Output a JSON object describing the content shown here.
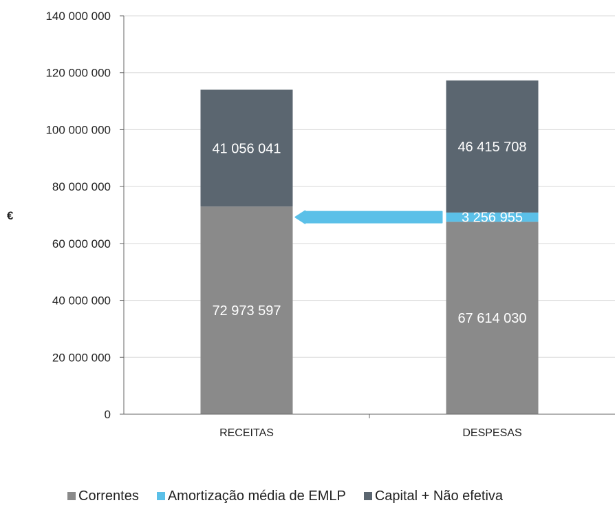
{
  "chart_data": {
    "type": "bar",
    "stacked": true,
    "categories": [
      "RECEITAS",
      "DESPESAS"
    ],
    "series": [
      {
        "name": "Correntes",
        "values": [
          72973597,
          67614030
        ],
        "value_labels": [
          "72 973 597",
          "67 614 030"
        ],
        "color": "#8a8a8a"
      },
      {
        "name": "Amortização média de EMLP",
        "values": [
          0,
          3256955
        ],
        "value_labels": [
          "",
          "3 256 955"
        ],
        "color": "#5bc0e8"
      },
      {
        "name": "Capital + Não efetiva",
        "values": [
          41056041,
          46415708
        ],
        "value_labels": [
          "41 056 041",
          "46 415 708"
        ],
        "color": "#5b6670"
      }
    ],
    "ylabel": "€",
    "ylim": [
      0,
      140000000
    ],
    "yticks": [
      0,
      20000000,
      40000000,
      60000000,
      80000000,
      100000000,
      120000000,
      140000000
    ],
    "ytick_labels": [
      "0",
      "20 000 000",
      "40 000 000",
      "60 000 000",
      "80 000 000",
      "100 000 000",
      "120 000 000",
      "140 000 000"
    ],
    "grid": true,
    "legend_position": "bottom",
    "annotation": {
      "type": "arrow",
      "from_category": "DESPESAS",
      "to_category": "RECEITAS",
      "color": "#5bc0e8"
    }
  }
}
